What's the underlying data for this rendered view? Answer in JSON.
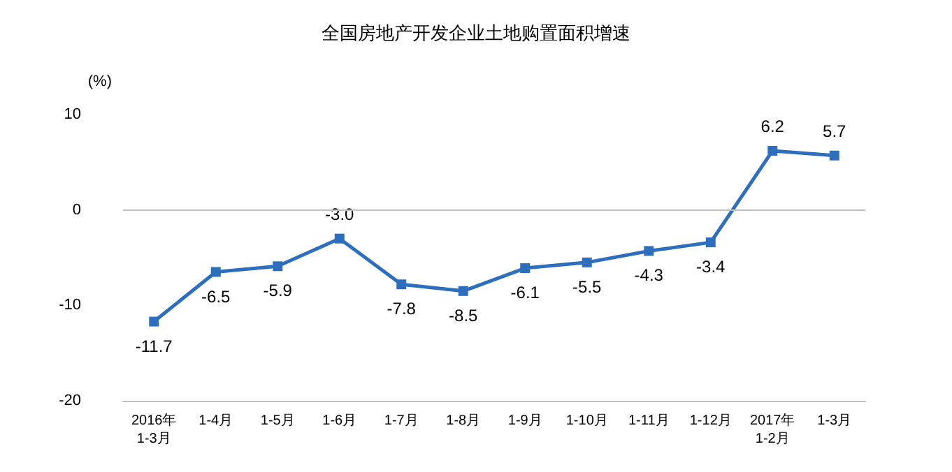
{
  "chart_data": {
    "type": "line",
    "title": "全国房地产开发企业土地购置面积增速",
    "ylabel": "(%)",
    "categories": [
      "2016年\n1-3月",
      "1-4月",
      "1-5月",
      "1-6月",
      "1-7月",
      "1-8月",
      "1-9月",
      "1-10月",
      "1-11月",
      "1-12月",
      "2017年\n1-2月",
      "1-3月"
    ],
    "series": [
      {
        "color": "#2e6fbd",
        "values": [
          -11.7,
          -6.5,
          -5.9,
          -3.0,
          -7.8,
          -8.5,
          -6.1,
          -5.5,
          -4.3,
          -3.4,
          6.2,
          5.7
        ],
        "value_labels": [
          "-11.7",
          "-6.5",
          "-5.9",
          "-3.0",
          "-7.8",
          "-8.5",
          "-6.1",
          "-5.5",
          "-4.3",
          "-3.4",
          "6.2",
          "5.7"
        ]
      }
    ],
    "ylim": [
      -20,
      10
    ],
    "yticks": [
      -20,
      -10,
      0,
      10
    ],
    "ref_lines": [
      {
        "axis": "y",
        "value": 0,
        "color": "#bfbfbf"
      }
    ],
    "marker": "square",
    "line_style": "solid",
    "grid": false
  }
}
